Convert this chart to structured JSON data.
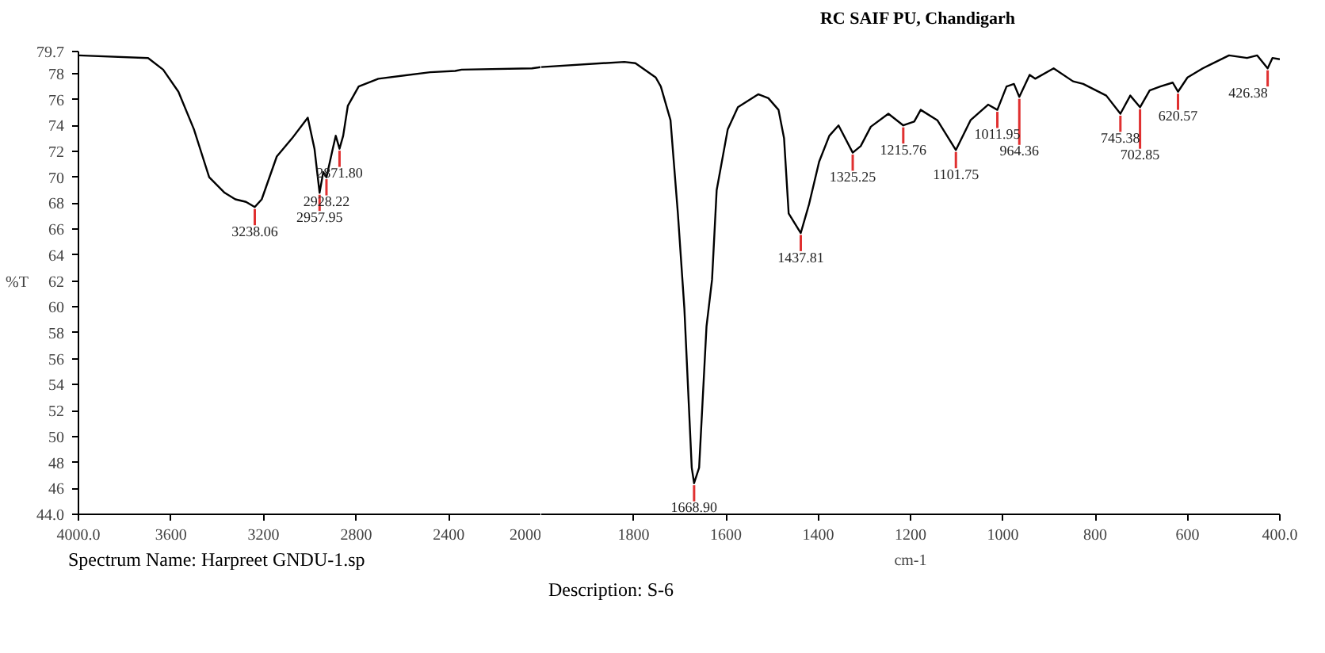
{
  "chart_data": [
    {
      "type": "line",
      "ylabel": "%T",
      "x": [
        4000,
        3699,
        3634,
        3568,
        3501,
        3435,
        3368,
        3322,
        3276,
        3238.06,
        3208,
        3143,
        3077,
        3009,
        2980,
        2957.95,
        2942,
        2928.22,
        2901,
        2888,
        2871.8,
        2856,
        2836,
        2789,
        2704,
        2480,
        2372,
        2344,
        2040,
        2000
      ],
      "series": [
        {
          "color": "#000000",
          "values": [
            79.4,
            79.2,
            78.3,
            76.6,
            73.7,
            70.0,
            68.8,
            68.3,
            68.1,
            67.7,
            68.3,
            71.6,
            73.0,
            74.6,
            72.2,
            68.8,
            70.4,
            70.0,
            72.2,
            73.2,
            72.2,
            73.2,
            75.5,
            77.0,
            77.6,
            78.1,
            78.2,
            78.3,
            78.4,
            78.5
          ]
        }
      ],
      "xlim": [
        4000,
        2000
      ],
      "xticks": [
        {
          "value": 4000,
          "label": "4000.0"
        },
        3600,
        3200,
        2800,
        2400,
        2000
      ],
      "ylim": [
        44,
        79.7
      ],
      "yticks": [
        {
          "value": 44,
          "label": "44.0"
        },
        46,
        48,
        50,
        52,
        54,
        56,
        58,
        60,
        62,
        64,
        66,
        68,
        70,
        72,
        74,
        76,
        78,
        79.7
      ],
      "annotations": [
        {
          "text": "3238.06",
          "x": 3238.06,
          "y": 67.7
        },
        {
          "text": "2957.95",
          "x": 2957.95,
          "y": 68.8
        },
        {
          "text": "2928.22",
          "x": 2928.22,
          "y": 70.0
        },
        {
          "text": "2871.80",
          "x": 2871.8,
          "y": 72.2
        },
        "Spectrum Name: Harpreet GNDU-1.sp"
      ]
    },
    {
      "type": "line",
      "title": "RC SAIF PU, Chandigarh",
      "xlabel": "cm-1",
      "x": [
        2000,
        1820,
        1796,
        1752,
        1741,
        1720,
        1704,
        1690,
        1674,
        1668.9,
        1658,
        1642,
        1630,
        1620,
        1596,
        1574,
        1530,
        1508,
        1486,
        1474,
        1464,
        1437.81,
        1420,
        1398,
        1376,
        1356,
        1325.25,
        1308,
        1286,
        1248,
        1215.76,
        1192,
        1178,
        1142,
        1101.75,
        1070,
        1032,
        1011.95,
        992,
        976,
        964.36,
        942,
        930,
        890,
        848,
        826,
        776,
        745.38,
        724,
        702.85,
        682,
        659,
        632,
        620.57,
        600,
        567,
        510,
        471,
        449,
        426.38,
        416,
        400
      ],
      "series": [
        {
          "color": "#000000",
          "values": [
            78.5,
            78.9,
            78.8,
            77.7,
            77.0,
            74.4,
            67.2,
            59.9,
            47.6,
            46.4,
            47.6,
            58.5,
            62.1,
            69.0,
            73.7,
            75.4,
            76.4,
            76.1,
            75.2,
            73.0,
            67.2,
            65.7,
            67.9,
            71.2,
            73.2,
            74.0,
            71.9,
            72.4,
            73.9,
            74.9,
            74.0,
            74.3,
            75.2,
            74.4,
            72.1,
            74.4,
            75.6,
            75.2,
            77.0,
            77.2,
            76.2,
            77.9,
            77.6,
            78.4,
            77.4,
            77.2,
            76.3,
            74.9,
            76.3,
            75.4,
            76.7,
            77.0,
            77.3,
            76.6,
            77.7,
            78.4,
            79.4,
            79.2,
            79.4,
            78.4,
            79.2,
            79.1
          ]
        }
      ],
      "xlim": [
        2000,
        400
      ],
      "xticks": [
        1800,
        1600,
        1400,
        1200,
        1000,
        800,
        600,
        {
          "value": 400,
          "label": "400.0"
        }
      ],
      "ylim": [
        44,
        79.7
      ],
      "tick_labels": "x",
      "annotations": [
        {
          "text": "1668.90",
          "x": 1668.9,
          "y": 46.4
        },
        {
          "text": "1437.81",
          "x": 1437.81,
          "y": 65.7
        },
        {
          "text": "1325.25",
          "x": 1325.25,
          "y": 71.9
        },
        {
          "text": "1215.76",
          "x": 1215.76,
          "y": 74.0
        },
        {
          "text": "1101.75",
          "x": 1101.75,
          "y": 72.1
        },
        {
          "text": "1011.95",
          "x": 1011.95,
          "y": 75.2
        },
        {
          "text": "964.36",
          "x": 964.36,
          "y": 76.2
        },
        {
          "text": "745.38",
          "x": 745.38,
          "y": 74.9
        },
        {
          "text": "702.85",
          "x": 702.85,
          "y": 75.4
        },
        {
          "text": "620.57",
          "x": 620.57,
          "y": 76.6
        },
        {
          "text": "426.38",
          "x": 426.38,
          "y": 78.4
        },
        "Description: S-6"
      ]
    }
  ]
}
